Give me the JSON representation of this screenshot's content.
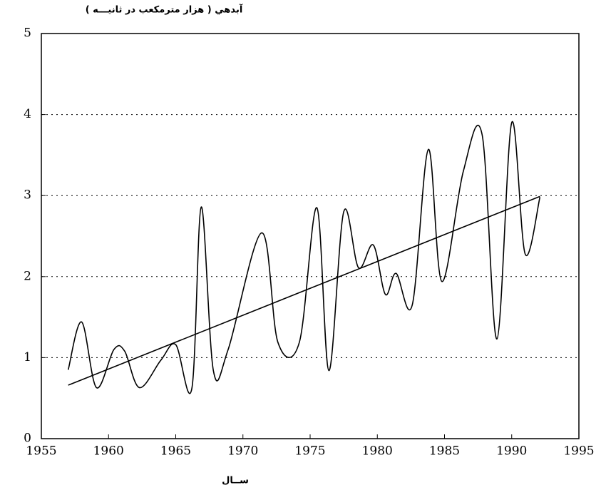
{
  "chart_data": {
    "type": "line",
    "ylabel": "آبدهي ( هزار مترمكعب در ثانيـــه )",
    "xlabel": "ســال",
    "series": [
      {
        "color": "#000000",
        "x": [
          1957.0,
          1958.0,
          1959.1,
          1960.4,
          1961.2,
          1962.3,
          1963.9,
          1965.0,
          1966.2,
          1966.9,
          1967.8,
          1968.9,
          1971.4,
          1972.6,
          1974.2,
          1975.5,
          1976.4,
          1977.5,
          1978.6,
          1979.7,
          1980.6,
          1981.4,
          1982.6,
          1983.8,
          1984.8,
          1986.4,
          1987.8,
          1988.9,
          1990.0,
          1991.0,
          1992.1
        ],
        "values": [
          0.85,
          1.44,
          0.63,
          1.1,
          1.08,
          0.63,
          0.97,
          1.16,
          0.62,
          2.86,
          0.84,
          1.1,
          2.54,
          1.19,
          1.19,
          2.85,
          0.84,
          2.8,
          2.11,
          2.39,
          1.78,
          2.04,
          1.65,
          3.57,
          1.94,
          3.3,
          3.75,
          1.23,
          3.9,
          2.28,
          2.98
        ]
      },
      {
        "color": "#000000",
        "x": [
          1957.0,
          1992.1
        ],
        "values": [
          0.66,
          2.99
        ]
      }
    ],
    "xlim": [
      1955,
      1995
    ],
    "xticks": [
      1955,
      1960,
      1965,
      1970,
      1975,
      1980,
      1985,
      1990,
      1995
    ],
    "ylim": [
      0,
      5
    ],
    "yticks": [
      0,
      1,
      2,
      3,
      4,
      5
    ],
    "grid": true
  }
}
